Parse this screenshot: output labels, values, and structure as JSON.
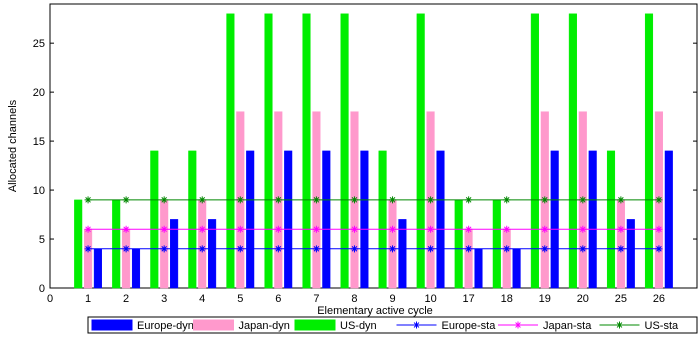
{
  "chart_data": {
    "type": "bar",
    "title": "",
    "xlabel": "Elementary active cycle",
    "ylabel": "Allocated channels",
    "categories": [
      "1",
      "2",
      "3",
      "4",
      "5",
      "6",
      "7",
      "8",
      "9",
      "10",
      "17",
      "18",
      "19",
      "20",
      "25",
      "26"
    ],
    "xlim": [
      0,
      17
    ],
    "xticks": [
      "0",
      "1",
      "2",
      "3",
      "4",
      "5",
      "6",
      "7",
      "8",
      "9",
      "10",
      "17",
      "18",
      "19",
      "20",
      "25",
      "26"
    ],
    "ylim": [
      0,
      29
    ],
    "yticks": [
      0,
      5,
      10,
      15,
      20,
      25
    ],
    "grid": false,
    "legend_position": "bottom",
    "series": [
      {
        "name": "Europe-dyn",
        "kind": "bar",
        "color": "#0000ff",
        "values": [
          4,
          4,
          7,
          7,
          14,
          14,
          14,
          14,
          7,
          14,
          4,
          4,
          14,
          14,
          7,
          14
        ]
      },
      {
        "name": "Japan-dyn",
        "kind": "bar",
        "color": "#ff99cc",
        "values": [
          6,
          6,
          9,
          9,
          18,
          18,
          18,
          18,
          9,
          18,
          6,
          6,
          18,
          18,
          9,
          18
        ]
      },
      {
        "name": "US-dyn",
        "kind": "bar",
        "color": "#00ee00",
        "values": [
          9,
          9,
          14,
          14,
          28,
          28,
          28,
          28,
          14,
          28,
          9,
          9,
          28,
          28,
          14,
          28
        ]
      },
      {
        "name": "Europe-sta",
        "kind": "line",
        "marker": "*",
        "color": "#0000ff",
        "values": [
          4,
          4,
          4,
          4,
          4,
          4,
          4,
          4,
          4,
          4,
          4,
          4,
          4,
          4,
          4,
          4
        ]
      },
      {
        "name": "Japan-sta",
        "kind": "line",
        "marker": "*",
        "color": "#ff00ff",
        "values": [
          6,
          6,
          6,
          6,
          6,
          6,
          6,
          6,
          6,
          6,
          6,
          6,
          6,
          6,
          6,
          6
        ]
      },
      {
        "name": "US-sta",
        "kind": "line",
        "marker": "*",
        "color": "#008800",
        "values": [
          9,
          9,
          9,
          9,
          9,
          9,
          9,
          9,
          9,
          9,
          9,
          9,
          9,
          9,
          9,
          9
        ]
      }
    ]
  }
}
